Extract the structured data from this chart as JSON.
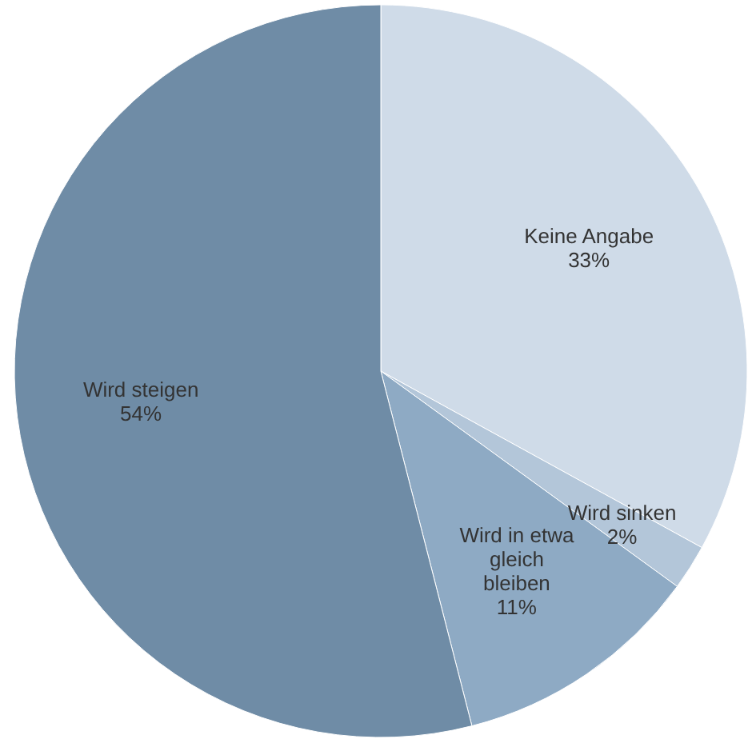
{
  "chart_data": {
    "type": "pie",
    "categories": [
      "Keine Angabe",
      "Wird sinken",
      "Wird in etwa gleich bleiben",
      "Wird steigen"
    ],
    "values": [
      33,
      2,
      11,
      54
    ],
    "value_labels": [
      "33%",
      "2%",
      "11%",
      "54%"
    ],
    "colors": [
      "#cfdbe8",
      "#b3c6d9",
      "#8eaac4",
      "#6f8ca6"
    ]
  }
}
